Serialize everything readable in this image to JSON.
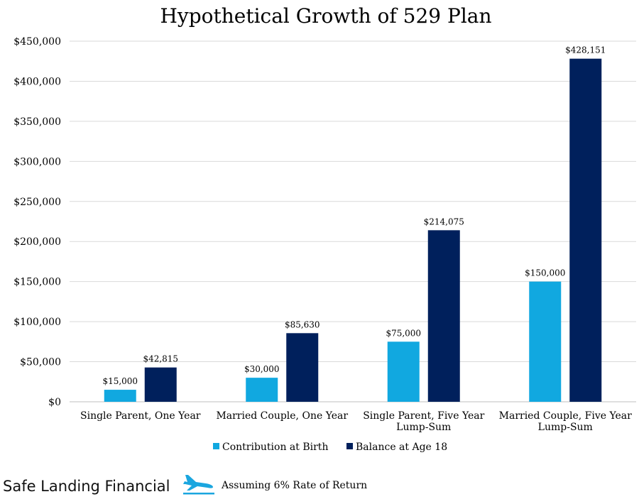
{
  "chart_data": {
    "type": "bar",
    "title": "Hypothetical Growth of 529 Plan",
    "categories": [
      [
        "Single Parent, One Year"
      ],
      [
        "Married Couple, One Year"
      ],
      [
        "Single Parent, Five Year",
        "Lump-Sum"
      ],
      [
        "Married Couple, Five Year",
        "Lump-Sum"
      ]
    ],
    "series": [
      {
        "name": "Contribution at Birth",
        "color": "#11A8E0",
        "values": [
          15000,
          30000,
          75000,
          150000
        ],
        "labels": [
          "$15,000",
          "$30,000",
          "$75,000",
          "$150,000"
        ]
      },
      {
        "name": "Balance at Age 18",
        "color": "#00205C",
        "values": [
          42815,
          85630,
          214075,
          428151
        ],
        "labels": [
          "$42,815",
          "$85,630",
          "$214,075",
          "$428,151"
        ]
      }
    ],
    "ylim": [
      0,
      450000
    ],
    "yticks": [
      0,
      50000,
      100000,
      150000,
      200000,
      250000,
      300000,
      350000,
      400000,
      450000
    ],
    "ytick_labels": [
      "$0",
      "$50,000",
      "$100,000",
      "$150,000",
      "$200,000",
      "$250,000",
      "$300,000",
      "$350,000",
      "$400,000",
      "$450,000"
    ],
    "xlabel": "",
    "ylabel": "",
    "grid": true,
    "legend_position": "bottom"
  },
  "footer": {
    "brand": "Safe Landing Financial",
    "logo_icon": "airplane-landing-icon",
    "note": "Assuming 6% Rate of Return"
  },
  "colors": {
    "grid": "#D9D9D9",
    "axis": "#BFBFBF",
    "logo": "#1BA6DF"
  }
}
